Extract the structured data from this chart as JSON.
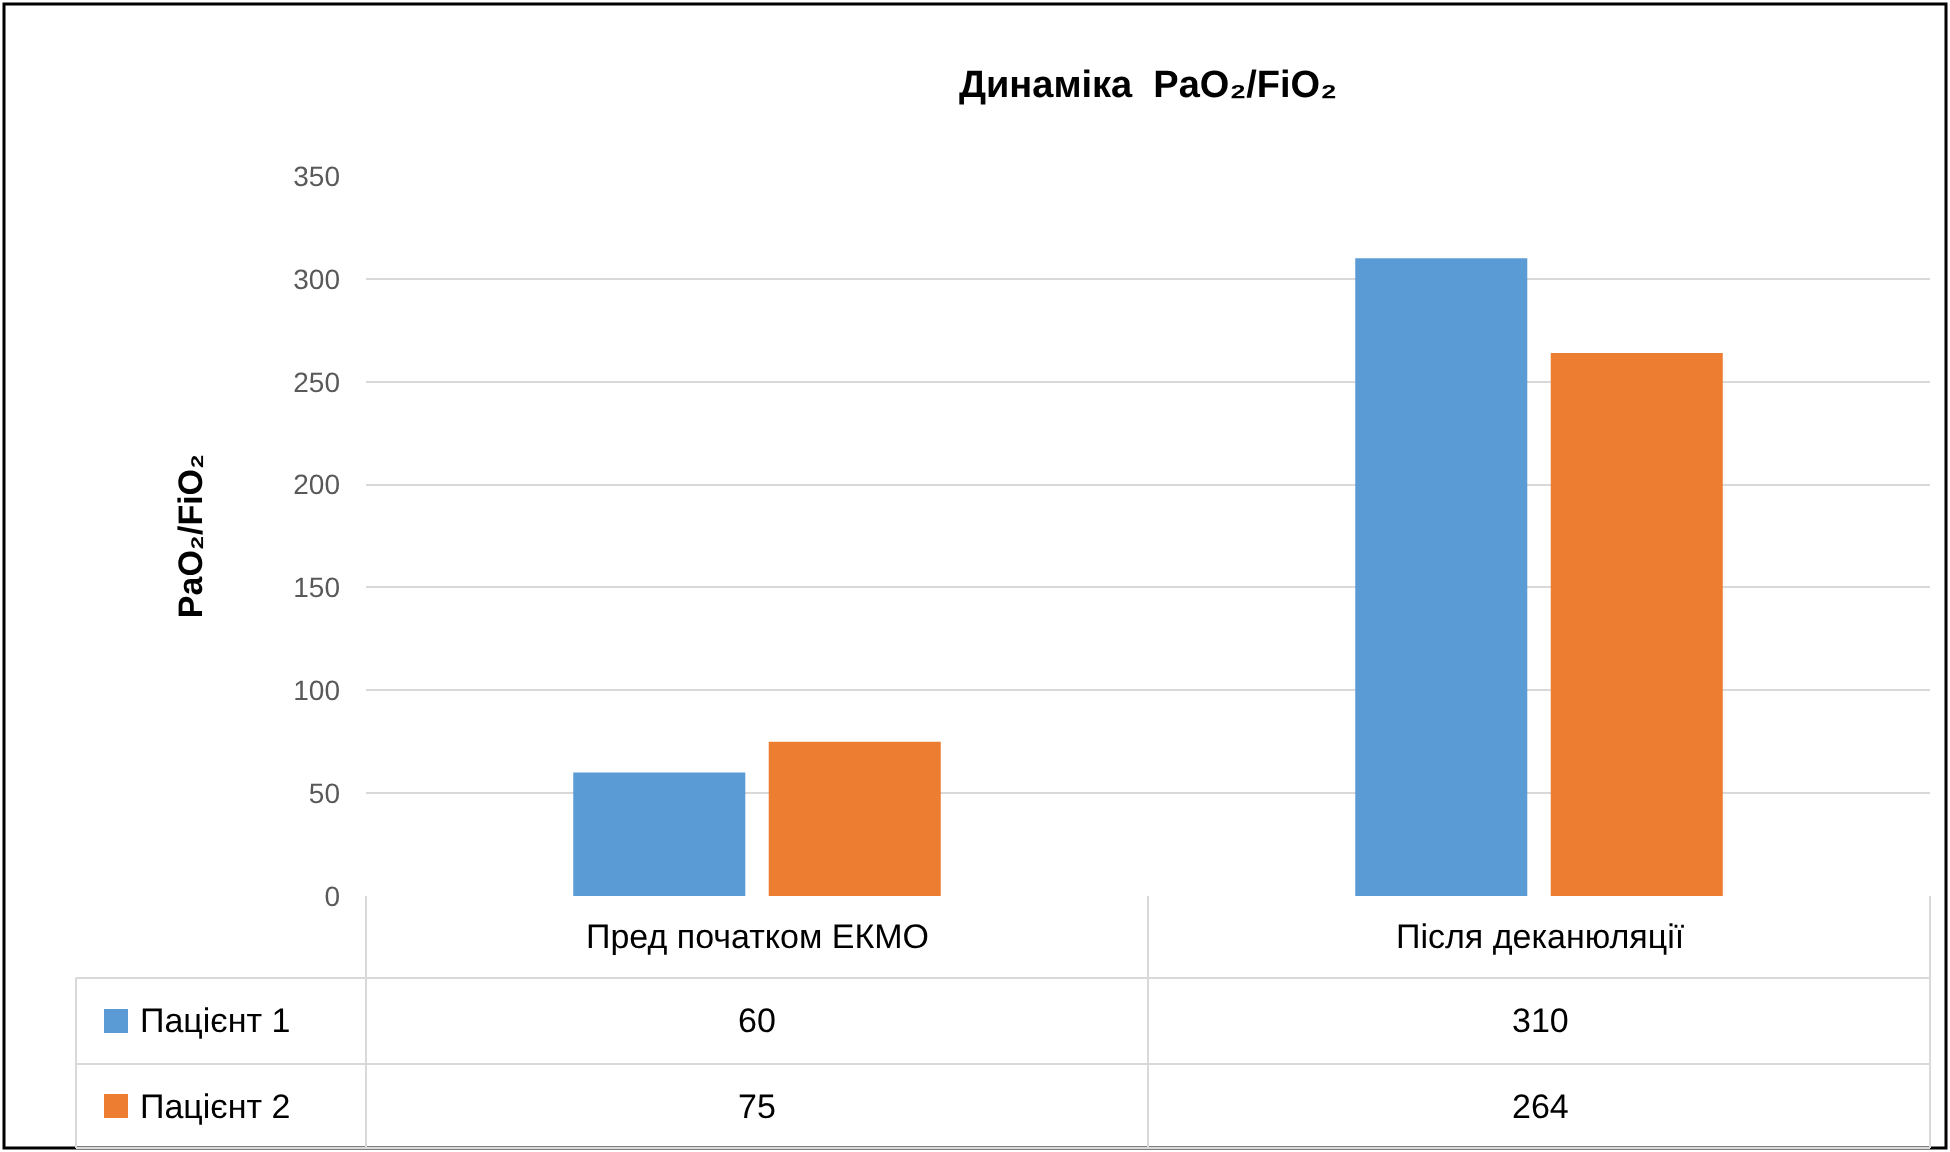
{
  "chart_data": {
    "type": "bar",
    "title": "Динаміка  PaO₂/FiO₂",
    "ylabel": "PaO₂/FiO₂",
    "categories": [
      "Пред початком ЕКМО",
      "Після деканюляції"
    ],
    "series": [
      {
        "name": "Пацієнт 1",
        "color": "#5b9bd5",
        "values": [
          60,
          310
        ],
        "value_labels": [
          "60",
          "310"
        ]
      },
      {
        "name": "Пацієнт 2",
        "color": "#ed7d31",
        "values": [
          75,
          264
        ],
        "value_labels": [
          "75",
          "264"
        ]
      }
    ],
    "ylim": [
      0,
      350
    ],
    "yticks": [
      0,
      50,
      100,
      150,
      200,
      250,
      300,
      350
    ],
    "grid": "y",
    "legend": "bottom"
  }
}
